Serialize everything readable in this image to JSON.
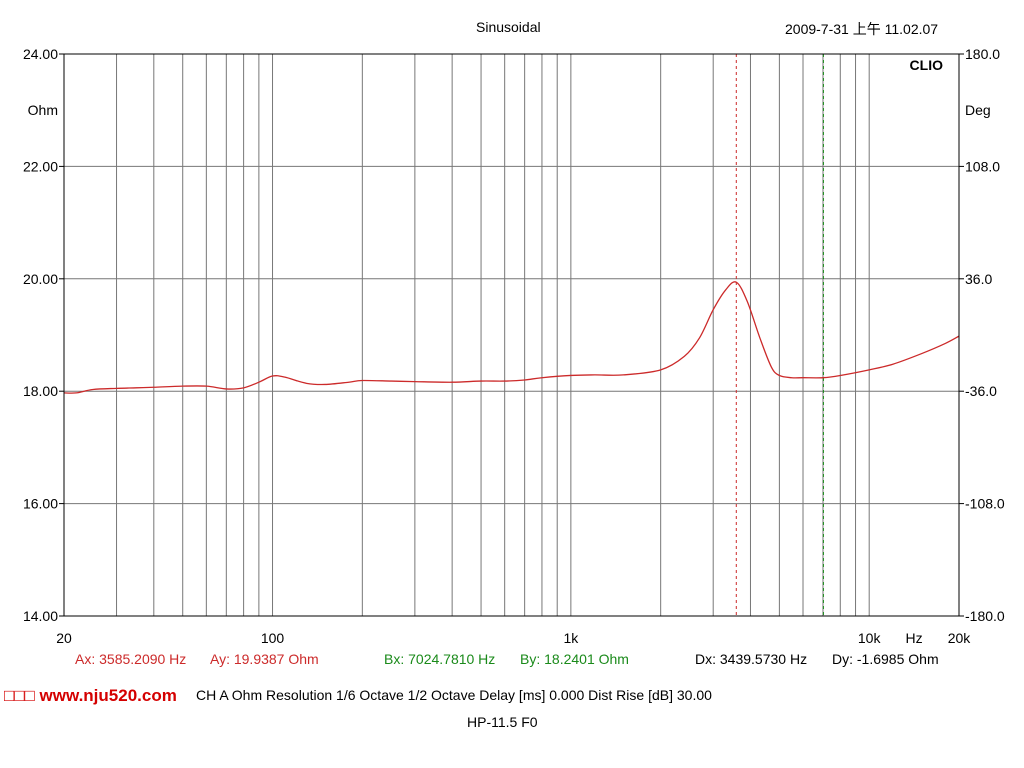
{
  "header": {
    "title": "Sinusoidal",
    "datetime": "2009-7-31 上午 11.02.07",
    "brand": "CLIO"
  },
  "chart_data": {
    "type": "line",
    "x_scale": "log",
    "xlim": [
      20,
      20000
    ],
    "ylim": [
      14,
      24
    ],
    "y2lim": [
      -180,
      180
    ],
    "y_ticks": [
      "24.00",
      "22.00",
      "20.00",
      "18.00",
      "16.00",
      "14.00"
    ],
    "y_unit": "Ohm",
    "y2_ticks": [
      "180.0",
      "108.0",
      "36.0",
      "-36.0",
      "-108.0",
      "-180.0"
    ],
    "y2_unit": "Deg",
    "x_ticks": [
      "20",
      "100",
      "1k",
      "10k",
      "20k"
    ],
    "x_unit": "Hz",
    "grid": true,
    "series": [
      {
        "color": "#cc2a2a",
        "points": [
          [
            20,
            17.97
          ],
          [
            22,
            17.97
          ],
          [
            25,
            18.03
          ],
          [
            30,
            18.05
          ],
          [
            35,
            18.06
          ],
          [
            40,
            18.07
          ],
          [
            50,
            18.09
          ],
          [
            60,
            18.09
          ],
          [
            70,
            18.04
          ],
          [
            80,
            18.06
          ],
          [
            90,
            18.16
          ],
          [
            100,
            18.27
          ],
          [
            110,
            18.25
          ],
          [
            130,
            18.14
          ],
          [
            150,
            18.12
          ],
          [
            180,
            18.16
          ],
          [
            200,
            18.19
          ],
          [
            250,
            18.18
          ],
          [
            300,
            18.17
          ],
          [
            400,
            18.16
          ],
          [
            500,
            18.18
          ],
          [
            600,
            18.18
          ],
          [
            700,
            18.2
          ],
          [
            800,
            18.24
          ],
          [
            1000,
            18.28
          ],
          [
            1200,
            18.29
          ],
          [
            1500,
            18.29
          ],
          [
            2000,
            18.38
          ],
          [
            2400,
            18.62
          ],
          [
            2700,
            18.95
          ],
          [
            3000,
            19.45
          ],
          [
            3300,
            19.8
          ],
          [
            3585,
            19.94
          ],
          [
            3900,
            19.6
          ],
          [
            4300,
            18.95
          ],
          [
            4700,
            18.43
          ],
          [
            5000,
            18.28
          ],
          [
            5500,
            18.24
          ],
          [
            6000,
            18.24
          ],
          [
            7000,
            18.24
          ],
          [
            8000,
            18.28
          ],
          [
            10000,
            18.38
          ],
          [
            12000,
            18.48
          ],
          [
            15000,
            18.67
          ],
          [
            18000,
            18.85
          ],
          [
            20000,
            18.98
          ]
        ]
      }
    ],
    "cursors": [
      {
        "name": "A",
        "x": 3585.209,
        "color": "#cc2a2a"
      },
      {
        "name": "B",
        "x": 7024.781,
        "color": "#1a8a1a"
      }
    ]
  },
  "readouts": {
    "ax": "Ax: 3585.2090 Hz",
    "ay": "Ay: 19.9387 Ohm",
    "bx": "Bx: 7024.7810 Hz",
    "by": "By: 18.2401 Ohm",
    "dx": "Dx: 3439.5730 Hz",
    "dy": "Dy: -1.6985 Ohm"
  },
  "footer": {
    "watermark": "□□□ www.nju520.com",
    "settings": "CH A   Ohm   Resolution 1/6 Octave   1/2 Octave   Delay [ms] 0.000   Dist Rise [dB] 30.00",
    "model": "HP-11.5   F0"
  }
}
